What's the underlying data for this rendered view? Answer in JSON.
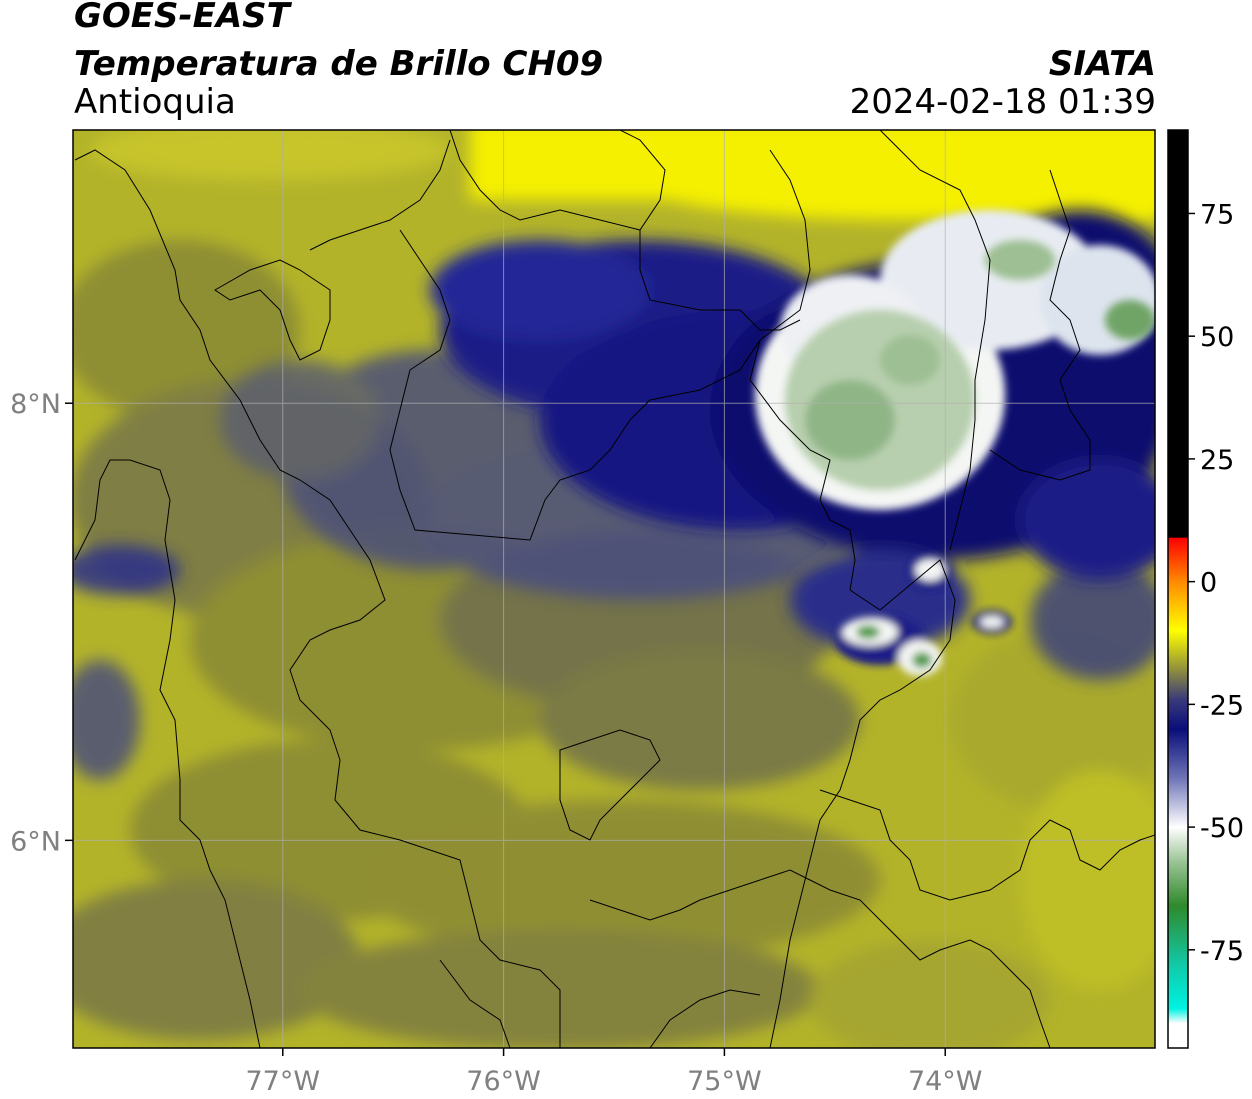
{
  "header": {
    "satellite": "GOES-EAST",
    "product": "Temperatura de Brillo CH09",
    "region": "Antioquia",
    "organization": "SIATA",
    "timestamp": "2024-02-18 01:39"
  },
  "map": {
    "lon_range": [
      -77.95,
      -73.05
    ],
    "lat_range": [
      5.05,
      9.25
    ],
    "lon_ticks": [
      {
        "value": -77,
        "label": "77°W"
      },
      {
        "value": -76,
        "label": "76°W"
      },
      {
        "value": -75,
        "label": "75°W"
      },
      {
        "value": -74,
        "label": "74°W"
      }
    ],
    "lat_ticks": [
      {
        "value": 8,
        "label": "8°N"
      },
      {
        "value": 6,
        "label": "6°N"
      }
    ],
    "gridlines": true,
    "colors": {
      "warm_background": "#b3b32a",
      "olive_dark": "#8a8a35",
      "gray_olive": "#6e6d4d",
      "slate": "#4b4f7a",
      "navy": "#1b1f87",
      "deep_navy": "#0a0e6e",
      "white_cloud": "#f4f6f4",
      "pale_green": "#b7cfae",
      "green": "#4e9a45",
      "yellow_warm": "#f5f000"
    }
  },
  "colorbar": {
    "title": "",
    "ticks": [
      {
        "value": 75,
        "label": "75"
      },
      {
        "value": 50,
        "label": "50"
      },
      {
        "value": 25,
        "label": "25"
      },
      {
        "value": 0,
        "label": "0"
      },
      {
        "value": -25,
        "label": "-25"
      },
      {
        "value": -50,
        "label": "-50"
      },
      {
        "value": -75,
        "label": "-75"
      }
    ],
    "range": [
      -95,
      92
    ],
    "stops": [
      {
        "value": 92,
        "color": "#000000"
      },
      {
        "value": 9,
        "color": "#000000"
      },
      {
        "value": 8.9,
        "color": "#ff0000"
      },
      {
        "value": 0,
        "color": "#ff8a00"
      },
      {
        "value": -10,
        "color": "#ffff00"
      },
      {
        "value": -17,
        "color": "#9c9c34"
      },
      {
        "value": -24,
        "color": "#3a3a7a"
      },
      {
        "value": -30,
        "color": "#0a0e7a"
      },
      {
        "value": -40,
        "color": "#6e74b6"
      },
      {
        "value": -50,
        "color": "#ffffff"
      },
      {
        "value": -57,
        "color": "#9bc496"
      },
      {
        "value": -66,
        "color": "#2f8a2b"
      },
      {
        "value": -78,
        "color": "#11c9a7"
      },
      {
        "value": -87,
        "color": "#00f2e2"
      },
      {
        "value": -90,
        "color": "#ffffff"
      },
      {
        "value": -95,
        "color": "#ffffff"
      }
    ]
  }
}
